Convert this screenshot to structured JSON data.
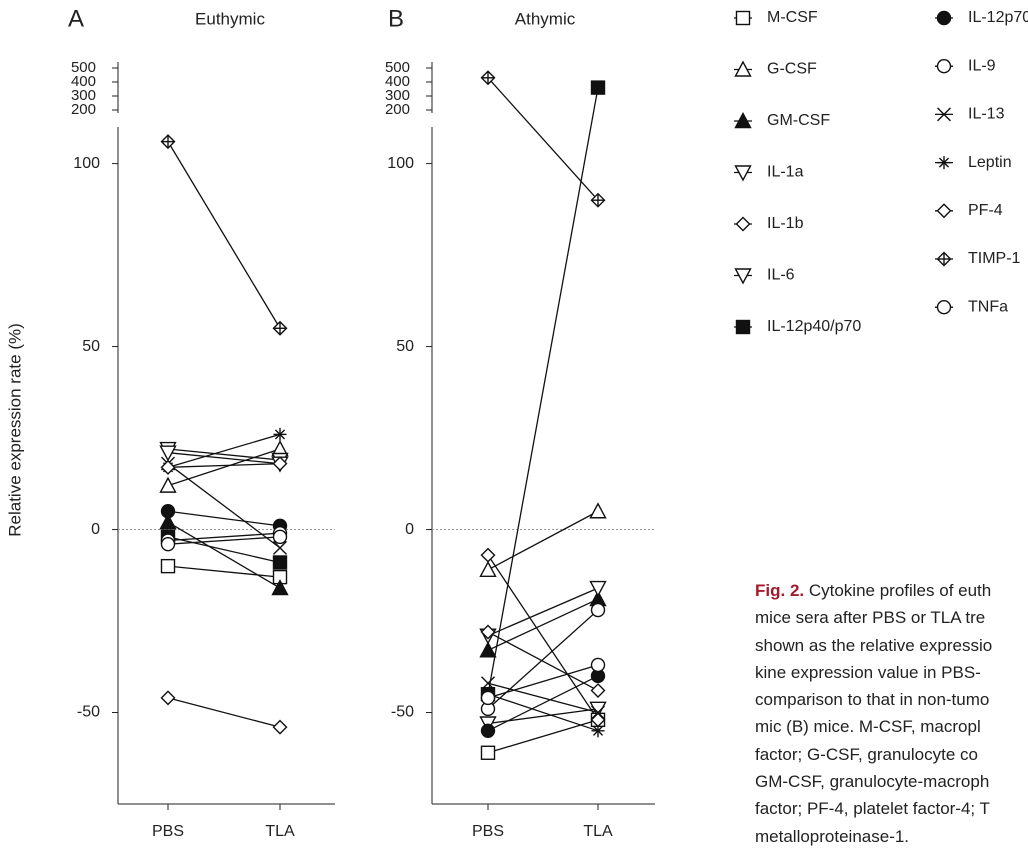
{
  "chart_data": [
    {
      "type": "line",
      "panel": "A",
      "title": "Euthymic",
      "y_label": "Relative expression rate (%)",
      "categories": [
        "PBS",
        "TLA"
      ],
      "ylim": [
        -75,
        500
      ],
      "ybreak": [
        110,
        200
      ],
      "yticks": [
        -50,
        0,
        50,
        100,
        200,
        300,
        400,
        500
      ],
      "reference_line": 0,
      "series": [
        {
          "name": "M-CSF",
          "marker": "square-open",
          "color": "#111111",
          "values": [
            -10,
            -13
          ]
        },
        {
          "name": "G-CSF",
          "marker": "triangle-open",
          "color": "#111111",
          "values": [
            12,
            22
          ]
        },
        {
          "name": "GM-CSF",
          "marker": "triangle-filled",
          "color": "#111111",
          "values": [
            2,
            -16
          ]
        },
        {
          "name": "IL-1a",
          "marker": "triangle-down-open",
          "color": "#111111",
          "values": [
            22,
            19
          ]
        },
        {
          "name": "IL-1b",
          "marker": "diamond-open",
          "color": "#111111",
          "values": [
            -46,
            -54
          ]
        },
        {
          "name": "IL-6",
          "marker": "triangle-down-open",
          "color": "#111111",
          "values": [
            21,
            18
          ]
        },
        {
          "name": "IL-12p40/p70",
          "marker": "square-filled",
          "color": "#111111",
          "values": [
            -2,
            -9
          ]
        },
        {
          "name": "IL-12p70",
          "marker": "circle-filled",
          "color": "#111111",
          "values": [
            5,
            1
          ]
        },
        {
          "name": "IL-9",
          "marker": "circle-open",
          "color": "#111111",
          "values": [
            -3,
            -1
          ]
        },
        {
          "name": "IL-13",
          "marker": "x",
          "color": "#111111",
          "values": [
            18,
            -5
          ]
        },
        {
          "name": "Leptin",
          "marker": "asterisk",
          "color": "#111111",
          "values": [
            17,
            26
          ]
        },
        {
          "name": "PF-4",
          "marker": "diamond-open",
          "color": "#111111",
          "values": [
            17,
            18
          ]
        },
        {
          "name": "TIMP-1",
          "marker": "diamond-plus",
          "color": "#111111",
          "values": [
            106,
            55
          ]
        },
        {
          "name": "TNFa",
          "marker": "circle-open",
          "color": "#111111",
          "values": [
            -4,
            -2
          ]
        }
      ]
    },
    {
      "type": "line",
      "panel": "B",
      "title": "Athymic",
      "categories": [
        "PBS",
        "TLA"
      ],
      "ylim": [
        -75,
        500
      ],
      "ybreak": [
        110,
        200
      ],
      "yticks": [
        -50,
        0,
        50,
        100,
        200,
        300,
        400,
        500
      ],
      "reference_line": 0,
      "series": [
        {
          "marker": "square-open",
          "color": "#111111",
          "values": [
            -61,
            -52
          ]
        },
        {
          "marker": "triangle-open",
          "color": "#111111",
          "values": [
            -11,
            5
          ]
        },
        {
          "marker": "triangle-filled",
          "color": "#111111",
          "values": [
            -33,
            -19
          ]
        },
        {
          "marker": "triangle-down-open",
          "color": "#111111",
          "values": [
            -29,
            -16
          ]
        },
        {
          "marker": "diamond-open",
          "color": "#111111",
          "values": [
            -28,
            -44
          ]
        },
        {
          "marker": "triangle-down-open",
          "color": "#111111",
          "values": [
            -53,
            -49
          ]
        },
        {
          "marker": "square-filled",
          "color": "#111111",
          "values": [
            -45,
            360
          ]
        },
        {
          "marker": "circle-filled",
          "color": "#111111",
          "values": [
            -55,
            -40
          ]
        },
        {
          "marker": "circle-open",
          "color": "#111111",
          "values": [
            -49,
            -22
          ]
        },
        {
          "marker": "x",
          "color": "#111111",
          "values": [
            -42,
            -50
          ]
        },
        {
          "marker": "asterisk",
          "color": "#111111",
          "values": [
            -45,
            -55
          ]
        },
        {
          "marker": "diamond-open",
          "color": "#111111",
          "values": [
            -7,
            -52
          ]
        },
        {
          "marker": "diamond-plus",
          "color": "#111111",
          "values": [
            430,
            90
          ]
        },
        {
          "marker": "circle-open",
          "color": "#111111",
          "values": [
            -46,
            -37
          ]
        }
      ]
    }
  ],
  "caption": {
    "label": "Fig. 2.",
    "lines": [
      " Cytokine profiles of euth",
      "mice sera after PBS or TLA tre",
      "shown as the relative expressio",
      "kine expression value in PBS-",
      "comparison to that in non-tumo",
      "mic (B) mice. M-CSF, macropl",
      "factor; G-CSF, granulocyte co",
      "GM-CSF, granulocyte-macroph",
      "factor; PF-4, platelet factor-4; T",
      "metalloproteinase-1."
    ]
  }
}
